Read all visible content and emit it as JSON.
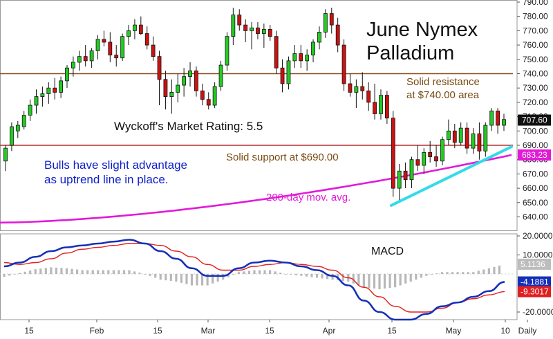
{
  "chart_data": [
    {
      "type": "candlestick",
      "title": "June Nymex Palladium",
      "title_lines": [
        "June Nymex",
        "Palladium"
      ],
      "ylim": [
        630,
        790
      ],
      "y_ticks": [
        640,
        650,
        660,
        670,
        680,
        690,
        700,
        710,
        720,
        730,
        740,
        750,
        760,
        770,
        780,
        790
      ],
      "y_tick_labels": [
        "640.00",
        "650.00",
        "660.00",
        "670.00",
        "680.00",
        "690.00",
        "700.00",
        "710.00",
        "720.00",
        "730.00",
        "740.00",
        "750.00",
        "760.00",
        "770.00",
        "780.00",
        "790.00"
      ],
      "x_labels": [
        "15",
        "Feb",
        "15",
        "Mar",
        "15",
        "Apr",
        "15",
        "May",
        "10",
        "Daily"
      ],
      "series": [
        {
          "kind": "ohlc",
          "colors": {
            "up": "#22cc22",
            "down": "#cc1111"
          },
          "values": [
            [
              679,
              690,
              672,
              688
            ],
            [
              690,
              706,
              686,
              703
            ],
            [
              700,
              707,
              695,
              704
            ],
            [
              703,
              714,
              701,
              711
            ],
            [
              711,
              722,
              707,
              718
            ],
            [
              718,
              729,
              712,
              724
            ],
            [
              724,
              731,
              717,
              726
            ],
            [
              726,
              734,
              719,
              730
            ],
            [
              730,
              737,
              722,
              727
            ],
            [
              727,
              738,
              723,
              735
            ],
            [
              735,
              746,
              730,
              744
            ],
            [
              744,
              752,
              738,
              748
            ],
            [
              748,
              756,
              742,
              752
            ],
            [
              752,
              760,
              745,
              749
            ],
            [
              749,
              758,
              744,
              756
            ],
            [
              756,
              767,
              750,
              764
            ],
            [
              764,
              770,
              759,
              762
            ],
            [
              762,
              769,
              748,
              753
            ],
            [
              753,
              760,
              745,
              751
            ],
            [
              751,
              768,
              749,
              766
            ],
            [
              766,
              774,
              760,
              770
            ],
            [
              770,
              778,
              764,
              774
            ],
            [
              774,
              780,
              767,
              768
            ],
            [
              768,
              773,
              757,
              760
            ],
            [
              760,
              766,
              749,
              752
            ],
            [
              752,
              756,
              718,
              736
            ],
            [
              736,
              742,
              715,
              724
            ],
            [
              724,
              736,
              712,
              727
            ],
            [
              727,
              740,
              720,
              732
            ],
            [
              732,
              744,
              724,
              738
            ],
            [
              738,
              748,
              731,
              742
            ],
            [
              742,
              745,
              724,
              728
            ],
            [
              728,
              733,
              718,
              722
            ],
            [
              722,
              727,
              715,
              718
            ],
            [
              718,
              734,
              716,
              731
            ],
            [
              731,
              749,
              728,
              746
            ],
            [
              746,
              769,
              742,
              766
            ],
            [
              766,
              786,
              760,
              781
            ],
            [
              781,
              785,
              770,
              774
            ],
            [
              774,
              778,
              762,
              770
            ],
            [
              770,
              776,
              757,
              772
            ],
            [
              772,
              776,
              764,
              768
            ],
            [
              768,
              775,
              758,
              771
            ],
            [
              771,
              774,
              763,
              766
            ],
            [
              766,
              770,
              740,
              744
            ],
            [
              744,
              750,
              727,
              733
            ],
            [
              733,
              752,
              729,
              749
            ],
            [
              749,
              760,
              744,
              754
            ],
            [
              754,
              760,
              744,
              749
            ],
            [
              749,
              757,
              742,
              753
            ],
            [
              753,
              764,
              748,
              762
            ],
            [
              762,
              773,
              757,
              769
            ],
            [
              769,
              785,
              765,
              782
            ],
            [
              782,
              786,
              768,
              774
            ],
            [
              774,
              779,
              755,
              760
            ],
            [
              760,
              764,
              728,
              733
            ],
            [
              733,
              740,
              724,
              727
            ],
            [
              727,
              736,
              716,
              731
            ],
            [
              731,
              741,
              722,
              728
            ],
            [
              728,
              734,
              714,
              720
            ],
            [
              720,
              733,
              708,
              712
            ],
            [
              712,
              729,
              708,
              725
            ],
            [
              725,
              728,
              705,
              709
            ],
            [
              709,
              714,
              654,
              660
            ],
            [
              660,
              677,
              650,
              672
            ],
            [
              672,
              678,
              660,
              666
            ],
            [
              666,
              682,
              660,
              680
            ],
            [
              680,
              690,
              672,
              676
            ],
            [
              676,
              688,
              670,
              685
            ],
            [
              685,
              693,
              678,
              682
            ],
            [
              682,
              690,
              675,
              679
            ],
            [
              679,
              696,
              676,
              694
            ],
            [
              694,
              708,
              690,
              700
            ],
            [
              700,
              705,
              688,
              692
            ],
            [
              692,
              706,
              690,
              702
            ],
            [
              702,
              706,
              684,
              688
            ],
            [
              688,
              702,
              684,
              698
            ],
            [
              698,
              706,
              680,
              686
            ],
            [
              686,
              706,
              682,
              704
            ],
            [
              704,
              716,
              700,
              714
            ],
            [
              714,
              716,
              698,
              704
            ],
            [
              704,
              712,
              700,
              708
            ]
          ]
        },
        {
          "name": "200-day mov. avg.",
          "kind": "line",
          "color": "#e21ad8",
          "start": 636,
          "end": 683.23
        },
        {
          "name": "uptrend line",
          "kind": "line",
          "color": "#33dbe8",
          "start": 648,
          "end": 689
        }
      ],
      "hlines": [
        {
          "label": "Solid resistance at $740.00 area",
          "value": 740,
          "color": "#8a4a1a"
        },
        {
          "label": "Solid support at $690.00",
          "value": 690,
          "color": "#b03030"
        }
      ],
      "annotations": [
        "Wyckoff's Market Rating: 5.5",
        "Solid resistance",
        "at $740.00 area",
        "Solid support at $690.00",
        "Bulls have slight advantage",
        "as uptrend line in place.",
        "200-day mov. avg."
      ],
      "price_badges": [
        {
          "value": "707.60",
          "bg": "#111111",
          "fg": "#ffffff"
        },
        {
          "value": "683.23",
          "bg": "#e21ad8",
          "fg": "#ffffff"
        }
      ]
    },
    {
      "type": "line",
      "title": "MACD",
      "ylim": [
        -25,
        20
      ],
      "y_tick_labels": [
        "20.0000",
        "10.0000",
        "-20.0000"
      ],
      "y_ticks": [
        20,
        10,
        -20
      ],
      "series": [
        {
          "name": "MACD",
          "color": "#1530b8",
          "values": [
            4,
            6,
            9,
            12,
            14,
            15,
            16,
            17,
            18,
            16,
            12,
            8,
            3,
            -1,
            -1,
            3,
            6,
            7,
            6,
            4,
            2,
            -1,
            -6,
            -14,
            -20,
            -24,
            -24,
            -21,
            -17,
            -15,
            -12,
            -9,
            -4.19
          ]
        },
        {
          "name": "Signal",
          "color": "#e02020",
          "values": [
            6,
            5,
            6,
            8,
            11,
            13,
            14,
            15,
            16,
            16,
            15,
            12,
            9,
            5,
            2,
            2,
            4,
            5,
            6,
            5,
            4,
            2,
            -2,
            -7,
            -12,
            -17,
            -20,
            -20,
            -18,
            -15,
            -13,
            -11,
            -9.3
          ]
        },
        {
          "name": "Histogram",
          "kind": "bar",
          "color": "#b8b8b8",
          "values": [
            -1.5,
            0.5,
            2.5,
            3.5,
            3,
            2,
            2,
            2,
            2,
            0,
            -3,
            -4,
            -6,
            -6,
            -3,
            1,
            2,
            2,
            0,
            -1,
            -2,
            -3,
            -4,
            -7,
            -8,
            -7,
            -4,
            -1,
            1,
            1,
            1,
            3,
            5.11
          ]
        }
      ],
      "value_badges": [
        {
          "value": "5.1136",
          "bg": "#bdbdbd",
          "fg": "#ffffff"
        },
        {
          "value": "-4.1881",
          "bg": "#1530b8",
          "fg": "#ffffff"
        },
        {
          "value": "-9.3017",
          "bg": "#e02020",
          "fg": "#ffffff"
        }
      ]
    }
  ]
}
